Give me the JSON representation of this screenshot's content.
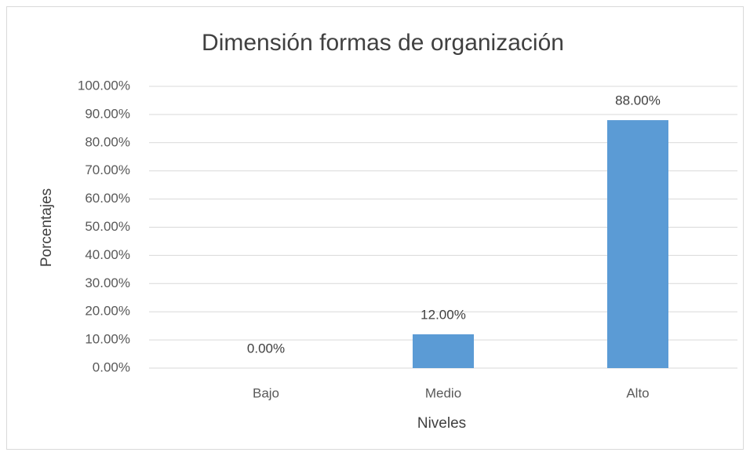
{
  "chart_data": {
    "type": "bar",
    "title": "Dimensión formas de organización",
    "x_label": "Niveles",
    "y_label": "Porcentajes",
    "categories": [
      "Bajo",
      "Medio",
      "Alto"
    ],
    "values": [
      0,
      12,
      88
    ],
    "value_labels": [
      "0.00%",
      "12.00%",
      "88.00%"
    ],
    "color": "#5b9bd5",
    "ylim": [
      0,
      100
    ],
    "yticks": [
      {
        "value": 0,
        "label": "0.00%"
      },
      {
        "value": 10,
        "label": "10.00%"
      },
      {
        "value": 20,
        "label": "20.00%"
      },
      {
        "value": 30,
        "label": "30.00%"
      },
      {
        "value": 40,
        "label": "40.00%"
      },
      {
        "value": 50,
        "label": "50.00%"
      },
      {
        "value": 60,
        "label": "60.00%"
      },
      {
        "value": 70,
        "label": "70.00%"
      },
      {
        "value": 80,
        "label": "80.00%"
      },
      {
        "value": 90,
        "label": "90.00%"
      },
      {
        "value": 100,
        "label": "100.00%"
      }
    ],
    "grid": true
  }
}
